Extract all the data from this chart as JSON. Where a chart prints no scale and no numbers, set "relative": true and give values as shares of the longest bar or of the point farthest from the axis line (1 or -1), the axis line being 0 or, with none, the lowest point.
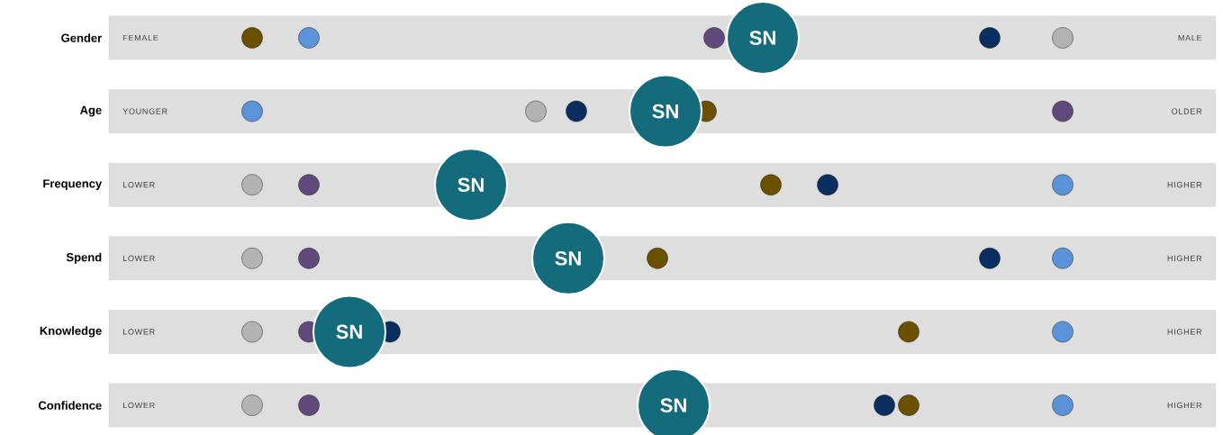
{
  "chart_data": {
    "type": "scatter",
    "orientation": "horizontal",
    "relative": true,
    "marker": "circle",
    "categories": [
      "Gender",
      "Age",
      "Frequency",
      "Spend",
      "Knowledge",
      "Confidence"
    ],
    "annotations": [
      "FEMALE",
      "MALE",
      "YOUNGER",
      "OLDER",
      "LOWER",
      "HIGHER",
      "LOWER",
      "HIGHER",
      "LOWER",
      "HIGHER",
      "LOWER",
      "HIGHER"
    ],
    "series": [
      {
        "color": "#b3b3b3",
        "values": [
          1.0,
          0.35,
          0,
          0,
          0,
          0
        ]
      },
      {
        "color": "#604a7b",
        "values": [
          0.57,
          1.0,
          0.07,
          0.07,
          0.07,
          0.07
        ]
      },
      {
        "color": "#6b5000",
        "values": [
          0,
          0.56,
          0.64,
          0.5,
          0.81,
          0.81
        ]
      },
      {
        "color": "#0a2e5f",
        "values": [
          0.91,
          0.4,
          0.71,
          0.91,
          0.17,
          0.78
        ]
      },
      {
        "color": "#5b93d8",
        "values": [
          0.07,
          0,
          1.0,
          1.0,
          1.0,
          1.0
        ]
      },
      {
        "name": "SN",
        "color": "#136b7c",
        "values": [
          0.63,
          0.51,
          0.27,
          0.39,
          0.12,
          0.52
        ]
      }
    ]
  }
}
